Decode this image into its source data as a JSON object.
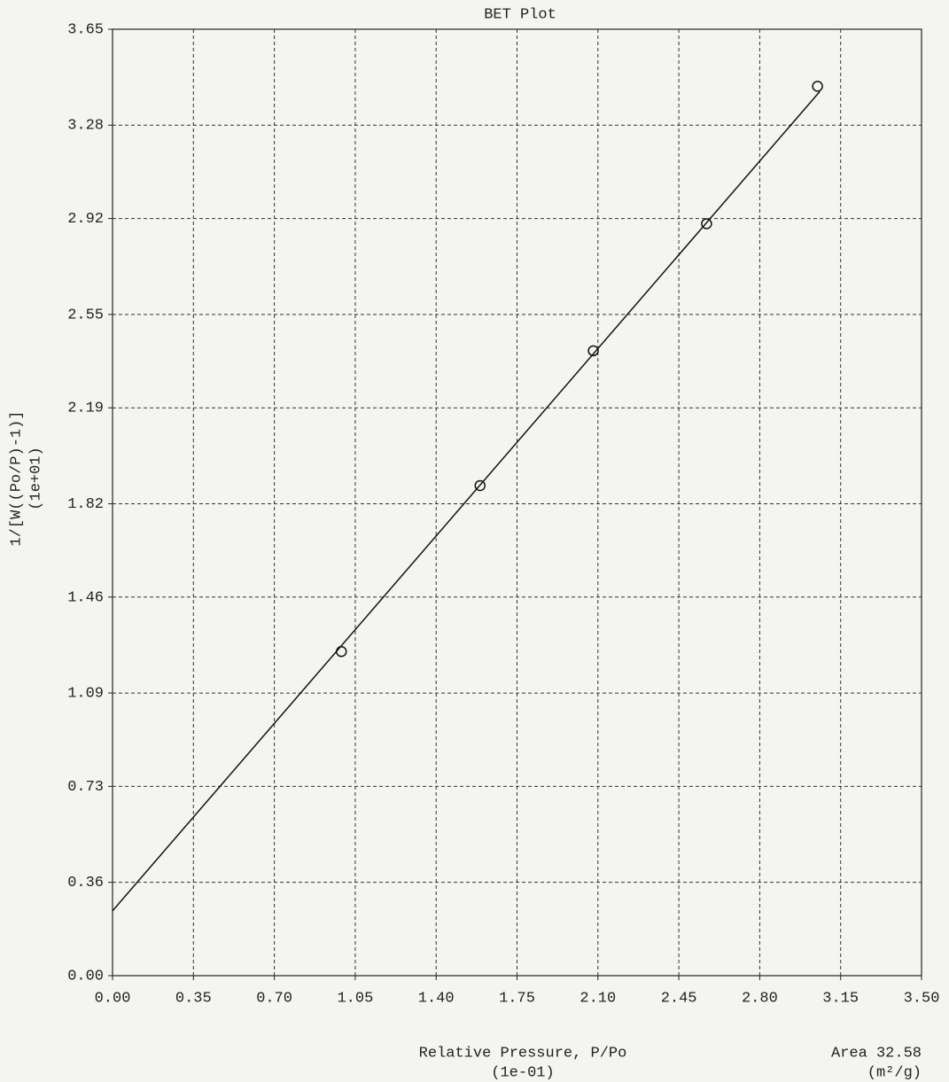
{
  "chart_data": {
    "type": "scatter",
    "title": "BET Plot",
    "y_label": "1/[W((Po/P)-1)]",
    "y_unit": "(1e+01)",
    "x_label": "Relative Pressure, P/Po",
    "x_unit": "(1e-01)",
    "annotation": "Area 32.58",
    "annotation_unit": "(m²/g)",
    "x": [
      0.99,
      1.59,
      2.08,
      2.57,
      3.05
    ],
    "values": [
      1.25,
      1.89,
      2.41,
      2.9,
      3.43
    ],
    "color": "#111111",
    "fit_line": {
      "x": [
        0,
        3.06
      ],
      "values": [
        0.25,
        3.41
      ]
    },
    "xlim": [
      0,
      3.5
    ],
    "ylim": [
      0,
      3.65
    ],
    "xticks": [
      {
        "value": 0,
        "label": "0.00"
      },
      0.35,
      {
        "value": 0.7,
        "label": "0.70"
      },
      1.05,
      {
        "value": 1.4,
        "label": "1.40"
      },
      1.75,
      {
        "value": 2.1,
        "label": "2.10"
      },
      2.45,
      {
        "value": 2.8,
        "label": "2.80"
      },
      3.15,
      {
        "value": 3.5,
        "label": "3.50"
      }
    ],
    "yticks": [
      {
        "value": 0,
        "label": "0.00"
      },
      0.36,
      0.73,
      1.09,
      1.46,
      1.82,
      2.19,
      2.55,
      2.92,
      3.28,
      3.65
    ],
    "grid": true
  }
}
